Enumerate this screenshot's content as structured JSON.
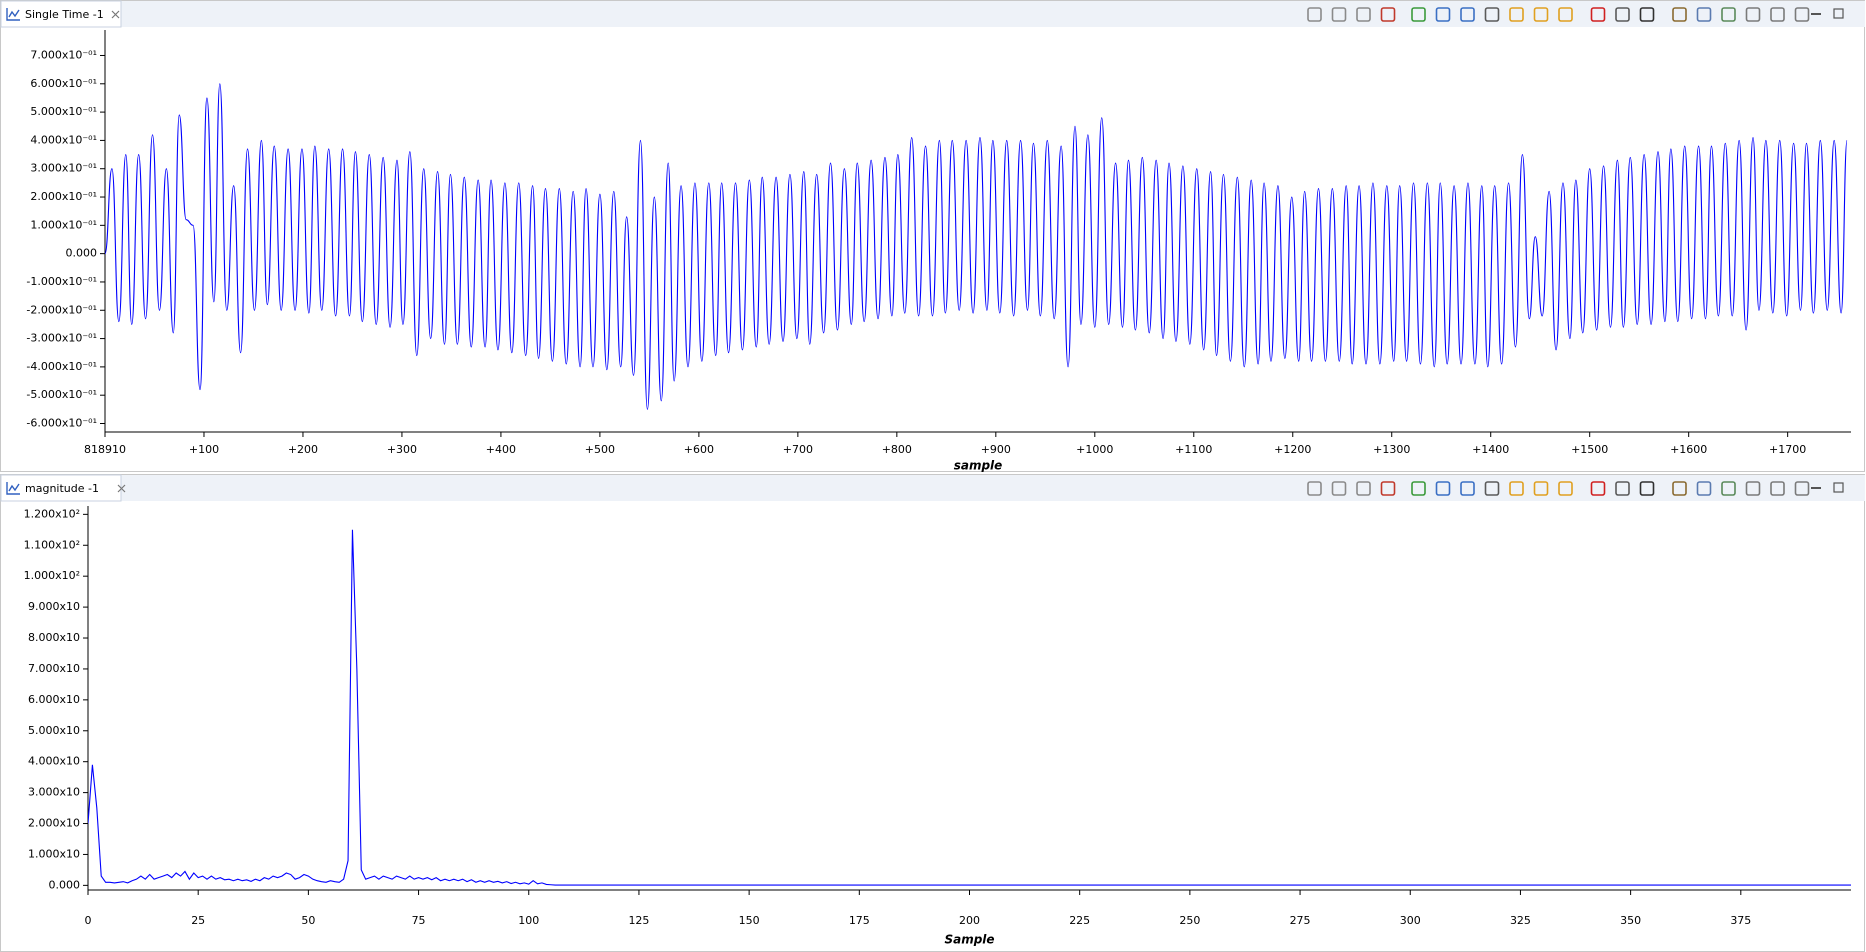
{
  "chart_data": [
    {
      "type": "line",
      "title": "Single Time -1",
      "x_label": "sample",
      "color": "#0000ff",
      "xlim": [
        0,
        1764
      ],
      "ylim": [
        -0.63,
        0.79
      ],
      "xticks": [
        {
          "value": 0,
          "label": "818910"
        },
        {
          "value": 100,
          "label": "+100"
        },
        {
          "value": 200,
          "label": "+200"
        },
        {
          "value": 300,
          "label": "+300"
        },
        {
          "value": 400,
          "label": "+400"
        },
        {
          "value": 500,
          "label": "+500"
        },
        {
          "value": 600,
          "label": "+600"
        },
        {
          "value": 700,
          "label": "+700"
        },
        {
          "value": 800,
          "label": "+800"
        },
        {
          "value": 900,
          "label": "+900"
        },
        {
          "value": 1000,
          "label": "+1000"
        },
        {
          "value": 1100,
          "label": "+1100"
        },
        {
          "value": 1200,
          "label": "+1200"
        },
        {
          "value": 1300,
          "label": "+1300"
        },
        {
          "value": 1400,
          "label": "+1400"
        },
        {
          "value": 1500,
          "label": "+1500"
        },
        {
          "value": 1600,
          "label": "+1600"
        },
        {
          "value": 1700,
          "label": "+1700"
        }
      ],
      "yticks": [
        {
          "value": 0.7,
          "label": "7.000x10⁻⁰¹"
        },
        {
          "value": 0.6,
          "label": "6.000x10⁻⁰¹"
        },
        {
          "value": 0.5,
          "label": "5.000x10⁻⁰¹"
        },
        {
          "value": 0.4,
          "label": "4.000x10⁻⁰¹"
        },
        {
          "value": 0.3,
          "label": "3.000x10⁻⁰¹"
        },
        {
          "value": 0.2,
          "label": "2.000x10⁻⁰¹"
        },
        {
          "value": 0.1,
          "label": "1.000x10⁻⁰¹"
        },
        {
          "value": 0,
          "label": "0.000"
        },
        {
          "value": -0.1,
          "label": "-1.000x10⁻⁰¹"
        },
        {
          "value": -0.2,
          "label": "-2.000x10⁻⁰¹"
        },
        {
          "value": -0.3,
          "label": "-3.000x10⁻⁰¹"
        },
        {
          "value": -0.4,
          "label": "-4.000x10⁻⁰¹"
        },
        {
          "value": -0.5,
          "label": "-5.000x10⁻⁰¹"
        },
        {
          "value": -0.6,
          "label": "-6.000x10⁻⁰¹"
        }
      ],
      "x": [
        0,
        7,
        14,
        21,
        27,
        34,
        41,
        48,
        55,
        62,
        69,
        75,
        82,
        89,
        96,
        103,
        110,
        116,
        123,
        130,
        137,
        144,
        151,
        158,
        164,
        171,
        178,
        185,
        192,
        199,
        206,
        212,
        219,
        226,
        233,
        240,
        247,
        253,
        260,
        267,
        274,
        281,
        288,
        295,
        301,
        308,
        315,
        322,
        329,
        336,
        343,
        349,
        356,
        363,
        370,
        377,
        384,
        390,
        397,
        404,
        411,
        418,
        425,
        432,
        438,
        445,
        452,
        459,
        466,
        473,
        480,
        486,
        493,
        500,
        507,
        514,
        521,
        527,
        534,
        541,
        548,
        555,
        562,
        569,
        575,
        582,
        589,
        596,
        603,
        610,
        617,
        623,
        630,
        637,
        644,
        651,
        658,
        664,
        671,
        678,
        685,
        692,
        699,
        706,
        712,
        719,
        726,
        733,
        740,
        747,
        754,
        760,
        767,
        774,
        781,
        788,
        795,
        801,
        808,
        815,
        822,
        829,
        836,
        843,
        849,
        856,
        863,
        870,
        877,
        884,
        891,
        897,
        904,
        911,
        918,
        925,
        932,
        938,
        945,
        952,
        959,
        966,
        973,
        980,
        986,
        993,
        1000,
        1007,
        1014,
        1021,
        1028,
        1034,
        1041,
        1048,
        1055,
        1062,
        1069,
        1075,
        1082,
        1089,
        1096,
        1103,
        1110,
        1117,
        1123,
        1130,
        1137,
        1144,
        1151,
        1158,
        1165,
        1171,
        1178,
        1185,
        1192,
        1199,
        1206,
        1212,
        1219,
        1226,
        1233,
        1240,
        1247,
        1254,
        1260,
        1267,
        1274,
        1281,
        1288,
        1295,
        1302,
        1308,
        1315,
        1322,
        1329,
        1336,
        1343,
        1349,
        1356,
        1363,
        1370,
        1377,
        1384,
        1391,
        1397,
        1404,
        1411,
        1418,
        1425,
        1432,
        1439,
        1445,
        1452,
        1459,
        1466,
        1473,
        1480,
        1486,
        1493,
        1500,
        1507,
        1514,
        1521,
        1528,
        1534,
        1541,
        1548,
        1555,
        1562,
        1569,
        1576,
        1582,
        1589,
        1596,
        1603,
        1610,
        1617,
        1623,
        1630,
        1637,
        1644,
        1651,
        1658,
        1665,
        1671,
        1678,
        1685,
        1692,
        1699,
        1706,
        1713,
        1719,
        1726,
        1733,
        1740,
        1747,
        1754,
        1760
      ],
      "values": [
        0,
        0.3,
        -0.24,
        0.35,
        -0.25,
        0.35,
        -0.23,
        0.42,
        -0.2,
        0.3,
        -0.28,
        0.49,
        0.12,
        0.1,
        -0.48,
        0.55,
        -0.17,
        0.6,
        -0.2,
        0.24,
        -0.35,
        0.37,
        -0.2,
        0.4,
        -0.18,
        0.38,
        -0.2,
        0.37,
        -0.2,
        0.37,
        -0.21,
        0.38,
        -0.2,
        0.37,
        -0.22,
        0.37,
        -0.22,
        0.36,
        -0.24,
        0.35,
        -0.25,
        0.34,
        -0.26,
        0.33,
        -0.25,
        0.36,
        -0.36,
        0.3,
        -0.3,
        0.29,
        -0.32,
        0.28,
        -0.32,
        0.27,
        -0.33,
        0.26,
        -0.33,
        0.26,
        -0.34,
        0.25,
        -0.35,
        0.25,
        -0.36,
        0.24,
        -0.37,
        0.23,
        -0.38,
        0.23,
        -0.39,
        0.22,
        -0.4,
        0.23,
        -0.4,
        0.21,
        -0.41,
        0.22,
        -0.4,
        0.13,
        -0.43,
        0.4,
        -0.55,
        0.2,
        -0.52,
        0.32,
        -0.45,
        0.24,
        -0.4,
        0.25,
        -0.38,
        0.25,
        -0.36,
        0.25,
        -0.35,
        0.25,
        -0.34,
        0.26,
        -0.33,
        0.27,
        -0.32,
        0.27,
        -0.31,
        0.28,
        -0.3,
        0.29,
        -0.32,
        0.28,
        -0.28,
        0.32,
        -0.27,
        0.3,
        -0.25,
        0.32,
        -0.24,
        0.33,
        -0.23,
        0.34,
        -0.22,
        0.35,
        -0.21,
        0.41,
        -0.22,
        0.38,
        -0.22,
        0.4,
        -0.21,
        0.4,
        -0.2,
        0.4,
        -0.21,
        0.41,
        -0.2,
        0.4,
        -0.21,
        0.4,
        -0.22,
        0.4,
        -0.2,
        0.39,
        -0.22,
        0.4,
        -0.23,
        0.38,
        -0.4,
        0.45,
        -0.25,
        0.42,
        -0.26,
        0.48,
        -0.25,
        0.32,
        -0.26,
        0.33,
        -0.27,
        0.34,
        -0.28,
        0.33,
        -0.3,
        0.32,
        -0.31,
        0.31,
        -0.32,
        0.3,
        -0.34,
        0.29,
        -0.36,
        0.28,
        -0.38,
        0.27,
        -0.4,
        0.26,
        -0.39,
        0.25,
        -0.38,
        0.24,
        -0.37,
        0.2,
        -0.38,
        0.22,
        -0.38,
        0.23,
        -0.38,
        0.23,
        -0.38,
        0.24,
        -0.39,
        0.24,
        -0.39,
        0.25,
        -0.39,
        0.24,
        -0.38,
        0.24,
        -0.38,
        0.25,
        -0.39,
        0.25,
        -0.4,
        0.25,
        -0.39,
        0.24,
        -0.39,
        0.25,
        -0.39,
        0.24,
        -0.4,
        0.24,
        -0.39,
        0.25,
        -0.33,
        0.35,
        -0.23,
        0.06,
        -0.22,
        0.22,
        -0.34,
        0.25,
        -0.3,
        0.26,
        -0.28,
        0.3,
        -0.27,
        0.31,
        -0.26,
        0.33,
        -0.26,
        0.34,
        -0.25,
        0.35,
        -0.25,
        0.36,
        -0.24,
        0.37,
        -0.24,
        0.38,
        -0.23,
        0.38,
        -0.23,
        0.38,
        -0.22,
        0.39,
        -0.22,
        0.4,
        -0.27,
        0.41,
        -0.2,
        0.4,
        -0.21,
        0.4,
        -0.22,
        0.39,
        -0.2,
        0.39,
        -0.21,
        0.4,
        -0.2,
        0.4,
        -0.21,
        0.4
      ]
    },
    {
      "type": "line",
      "title": "magnitude -1",
      "x_label": "Sample",
      "color": "#0000ff",
      "xlim": [
        0,
        400
      ],
      "ylim": [
        -1.5,
        122.7
      ],
      "xticks": [
        0,
        25,
        50,
        75,
        100,
        125,
        150,
        175,
        200,
        225,
        250,
        275,
        300,
        325,
        350,
        375
      ],
      "yticks": [
        {
          "value": 120,
          "label": "1.200x10²"
        },
        {
          "value": 110,
          "label": "1.100x10²"
        },
        {
          "value": 100,
          "label": "1.000x10²"
        },
        {
          "value": 90,
          "label": "9.000x10"
        },
        {
          "value": 80,
          "label": "8.000x10"
        },
        {
          "value": 70,
          "label": "7.000x10"
        },
        {
          "value": 60,
          "label": "6.000x10"
        },
        {
          "value": 50,
          "label": "5.000x10"
        },
        {
          "value": 40,
          "label": "4.000x10"
        },
        {
          "value": 30,
          "label": "3.000x10"
        },
        {
          "value": 20,
          "label": "2.000x10"
        },
        {
          "value": 10,
          "label": "1.000x10"
        },
        {
          "value": 0,
          "label": "0.000"
        }
      ],
      "x": [
        0,
        1,
        2,
        3,
        4,
        5,
        6,
        7,
        8,
        9,
        10,
        11,
        12,
        13,
        14,
        15,
        16,
        17,
        18,
        19,
        20,
        21,
        22,
        23,
        24,
        25,
        26,
        27,
        28,
        29,
        30,
        31,
        32,
        33,
        34,
        35,
        36,
        37,
        38,
        39,
        40,
        41,
        42,
        43,
        44,
        45,
        46,
        47,
        48,
        49,
        50,
        51,
        52,
        53,
        54,
        55,
        56,
        57,
        58,
        59,
        60,
        61,
        62,
        63,
        64,
        65,
        66,
        67,
        68,
        69,
        70,
        71,
        72,
        73,
        74,
        75,
        76,
        77,
        78,
        79,
        80,
        81,
        82,
        83,
        84,
        85,
        86,
        87,
        88,
        89,
        90,
        91,
        92,
        93,
        94,
        95,
        96,
        97,
        98,
        99,
        100,
        101,
        102,
        103,
        104,
        105,
        106,
        107,
        400
      ],
      "values": [
        20,
        39,
        25,
        3,
        1,
        1,
        0.8,
        1,
        1.2,
        0.8,
        1.5,
        2,
        3,
        2,
        3.5,
        2,
        2.5,
        3,
        3.5,
        2.5,
        4,
        3,
        4.5,
        2,
        4,
        2.5,
        3,
        2,
        3,
        2,
        2.5,
        1.8,
        2,
        1.5,
        2,
        1.5,
        1.8,
        1.3,
        2,
        1.5,
        2.5,
        2,
        3,
        2.5,
        3,
        4,
        3.5,
        2,
        2.5,
        3.5,
        3,
        2,
        1.5,
        1.2,
        1,
        1.5,
        1.2,
        1,
        2,
        8,
        115,
        70,
        5,
        2,
        2.5,
        3,
        2,
        3,
        2.5,
        2,
        3,
        2.5,
        2,
        3,
        2,
        2.5,
        2,
        2.5,
        1.8,
        2.5,
        1.5,
        2,
        1.5,
        2,
        1.5,
        2,
        1.2,
        1.8,
        1,
        1.5,
        1,
        1.5,
        1,
        1.3,
        0.8,
        1.2,
        0.6,
        1,
        0.5,
        0.8,
        0.4,
        1.5,
        0.5,
        0.8,
        0.3,
        0.2,
        0.1,
        0.1,
        0.1
      ]
    }
  ]
}
